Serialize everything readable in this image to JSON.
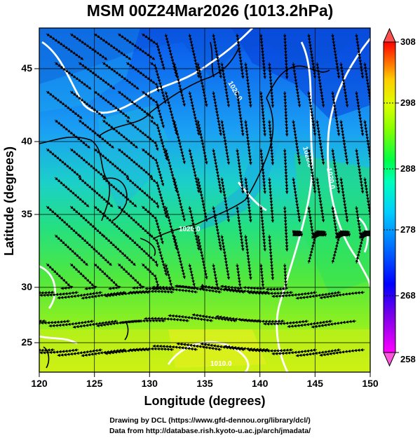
{
  "title": "MSM 00Z24Mar2026 (1013.2hPa)",
  "map": {
    "xlabel": "Longitude (degrees)",
    "ylabel": "Latitude  (degrees)",
    "xticks": [
      "120",
      "125",
      "130",
      "135",
      "140",
      "145",
      "150"
    ],
    "yticks": [
      "25",
      "30",
      "35",
      "40",
      "45"
    ],
    "xrange": [
      120,
      150
    ],
    "yrange": [
      22.5,
      47.6
    ],
    "field": "temperature (K) with surface streamlines",
    "contour_labels": [
      "1020.0",
      "1020.0",
      "1020.0",
      "1020.0",
      "1010.0"
    ]
  },
  "colorbar": {
    "ticks": [
      "308",
      "298",
      "288",
      "278",
      "268",
      "258"
    ],
    "range": [
      258,
      308
    ],
    "colors": [
      "#ff00ff",
      "#7700ff",
      "#0000ff",
      "#0066ff",
      "#00ccff",
      "#00ffcc",
      "#00ff44",
      "#88ff00",
      "#ddff00",
      "#ffcc00",
      "#ff6600",
      "#ff0000"
    ]
  },
  "footer": {
    "line1": "Drawing by DCL (https://www.gfd-dennou.org/library/dcl/)",
    "line2": "Data from http://database.rish.kyoto-u.ac.jp/arch/jmadata/"
  }
}
